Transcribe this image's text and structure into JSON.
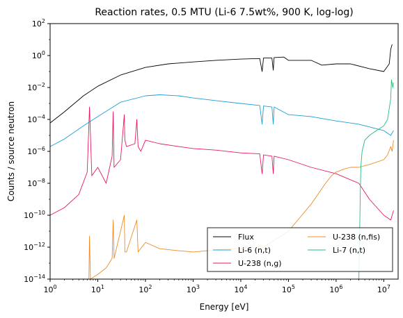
{
  "chart_data": {
    "type": "line",
    "title": "Reaction rates, 0.5 MTU (Li-6 7.5wt%, 900 K, log-log)",
    "xlabel": "Energy [eV]",
    "ylabel": "Counts / source neutron",
    "xscale": "log",
    "yscale": "log",
    "xlim": [
      1,
      20000000
    ],
    "ylim": [
      1e-14,
      100
    ],
    "xticks": [
      {
        "base": "10",
        "exp": "0",
        "value": 1
      },
      {
        "base": "10",
        "exp": "1",
        "value": 10
      },
      {
        "base": "10",
        "exp": "2",
        "value": 100
      },
      {
        "base": "10",
        "exp": "3",
        "value": 1000
      },
      {
        "base": "10",
        "exp": "4",
        "value": 10000
      },
      {
        "base": "10",
        "exp": "5",
        "value": 100000
      },
      {
        "base": "10",
        "exp": "6",
        "value": 1000000
      },
      {
        "base": "10",
        "exp": "7",
        "value": 10000000
      }
    ],
    "yticks": [
      {
        "base": "10",
        "exp": "2",
        "value": 100
      },
      {
        "base": "10",
        "exp": "0",
        "value": 1
      },
      {
        "base": "10",
        "exp": "−2",
        "value": 0.01
      },
      {
        "base": "10",
        "exp": "−4",
        "value": 0.0001
      },
      {
        "base": "10",
        "exp": "−6",
        "value": 1e-06
      },
      {
        "base": "10",
        "exp": "−8",
        "value": 1e-08
      },
      {
        "base": "10",
        "exp": "−10",
        "value": 1e-10
      },
      {
        "base": "10",
        "exp": "−12",
        "value": 1e-12
      },
      {
        "base": "10",
        "exp": "−14",
        "value": 1e-14
      }
    ],
    "legend_position": "bottom-right",
    "series": [
      {
        "name": "Flux",
        "color": "#000000",
        "x": [
          1,
          2,
          5,
          10,
          30,
          100,
          300,
          1000,
          3000,
          10000,
          25000,
          28000,
          30000,
          45000,
          48000,
          50000,
          80000,
          100000,
          300000,
          500000,
          1000000,
          2000000,
          5000000,
          10000000,
          13000000,
          14000000,
          15000000
        ],
        "y": [
          6e-05,
          0.0003,
          0.003,
          0.012,
          0.06,
          0.18,
          0.3,
          0.4,
          0.5,
          0.6,
          0.65,
          0.1,
          0.7,
          0.7,
          0.12,
          0.75,
          0.8,
          0.5,
          0.5,
          0.25,
          0.3,
          0.3,
          0.15,
          0.1,
          0.3,
          2.5,
          5
        ]
      },
      {
        "name": "Li-6 (n,t)",
        "color": "#1a9fd6",
        "x": [
          1,
          2,
          5,
          10,
          30,
          100,
          200,
          500,
          1000,
          3000,
          10000,
          25000,
          28000,
          30000,
          45000,
          48000,
          50000,
          100000,
          300000,
          1000000,
          3000000,
          10000000,
          14000000,
          16000000
        ],
        "y": [
          2e-06,
          6e-06,
          4e-05,
          0.00015,
          0.0012,
          0.003,
          0.0035,
          0.003,
          0.0022,
          0.0015,
          0.001,
          0.00075,
          5e-05,
          0.0007,
          0.0006,
          5e-05,
          0.0006,
          0.0002,
          0.00015,
          8e-05,
          5e-05,
          2e-05,
          1e-05,
          2e-05
        ]
      },
      {
        "name": "U-238 (n,g)",
        "color": "#e8175d",
        "x": [
          1,
          2,
          4,
          6,
          6.7,
          7.5,
          10,
          15,
          20,
          21,
          22,
          30,
          36,
          37,
          40,
          60,
          66,
          70,
          80,
          100,
          200,
          500,
          1000,
          3000,
          10000,
          25000,
          28000,
          30000,
          45000,
          48000,
          50000,
          100000,
          300000,
          1000000,
          3000000,
          5000000,
          10000000,
          14000000,
          16000000
        ],
        "y": [
          1e-10,
          3e-10,
          2e-09,
          5e-08,
          0.0006,
          3e-08,
          1e-07,
          1e-08,
          5e-07,
          0.0003,
          1e-07,
          3e-07,
          0.0002,
          5e-06,
          2e-06,
          3e-06,
          0.0001,
          2e-06,
          1e-06,
          5e-06,
          3e-06,
          2e-06,
          1.5e-06,
          1.2e-06,
          8e-07,
          7e-07,
          4e-08,
          6e-07,
          5e-07,
          4e-08,
          5e-07,
          3e-07,
          1e-07,
          4e-08,
          1e-08,
          1e-09,
          1e-10,
          5e-11,
          2e-10
        ]
      },
      {
        "name": "U-238 (n,fis)",
        "color": "#f08a24",
        "x": [
          1,
          5,
          6.5,
          6.7,
          7,
          10,
          15,
          20,
          21,
          22,
          36,
          37,
          40,
          66,
          70,
          100,
          200,
          500,
          1000,
          2000,
          5000,
          10000,
          30000,
          100000,
          300000,
          600000,
          800000,
          1000000,
          1500000,
          2000000,
          3000000,
          5000000,
          10000000,
          12000000,
          14000000,
          15000000,
          16000000
        ],
        "y": [
          1e-14,
          1e-14,
          1e-14,
          5e-12,
          1e-14,
          2e-14,
          5e-14,
          2e-13,
          5e-11,
          2e-13,
          1e-10,
          5e-13,
          5e-13,
          5e-11,
          5e-13,
          2e-12,
          8e-13,
          6e-13,
          5e-13,
          6e-13,
          8e-13,
          8e-13,
          1e-12,
          1e-11,
          5e-10,
          1e-08,
          3e-08,
          5e-08,
          8e-08,
          1e-07,
          1e-07,
          1.5e-07,
          3e-07,
          6e-07,
          2e-06,
          1e-06,
          5e-06
        ]
      },
      {
        "name": "Li-7 (n,t)",
        "color": "#1dbf7a",
        "x": [
          3000000,
          3200000,
          3300000,
          3500000,
          4000000,
          5000000,
          7000000,
          10000000,
          12000000,
          14000000,
          14500000,
          15500000,
          16000000
        ],
        "y": [
          1e-14,
          1e-09,
          1e-07,
          1e-06,
          5e-06,
          1e-05,
          2e-05,
          4e-05,
          0.0001,
          0.002,
          0.03,
          0.01,
          0.02
        ]
      }
    ]
  }
}
